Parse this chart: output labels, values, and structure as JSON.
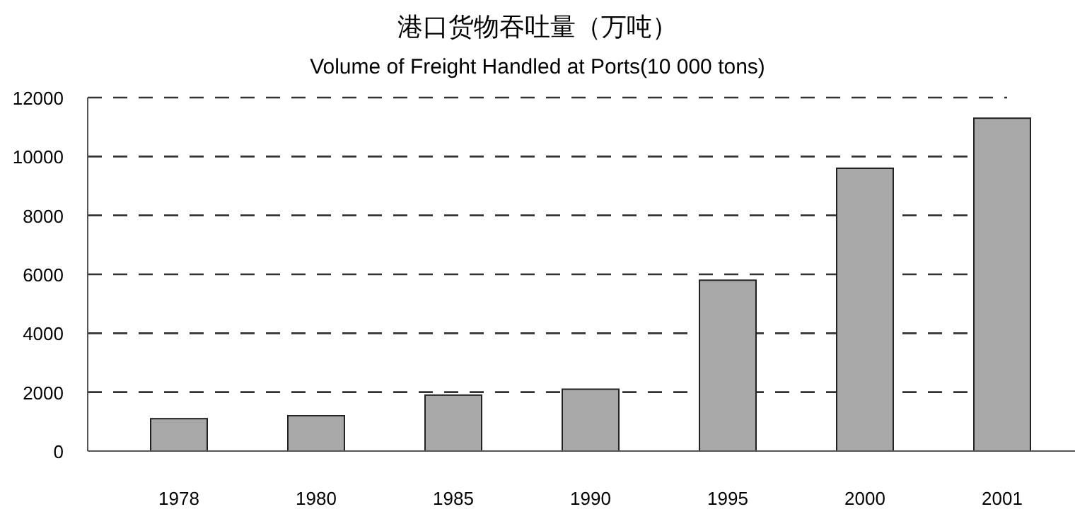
{
  "chart_data": {
    "type": "bar",
    "title": "港口货物吞吐量（万吨）",
    "subtitle": "Volume of Freight Handled at Ports(10 000 tons)",
    "categories": [
      "1978",
      "1980",
      "1985",
      "1990",
      "1995",
      "2000",
      "2001"
    ],
    "values": [
      1100,
      1200,
      1900,
      2100,
      5800,
      9600,
      11300
    ],
    "color": "#a8a8a8",
    "ylim": [
      0,
      12000
    ],
    "yticks": [
      0,
      2000,
      4000,
      6000,
      8000,
      10000,
      12000
    ],
    "grid": "y"
  }
}
